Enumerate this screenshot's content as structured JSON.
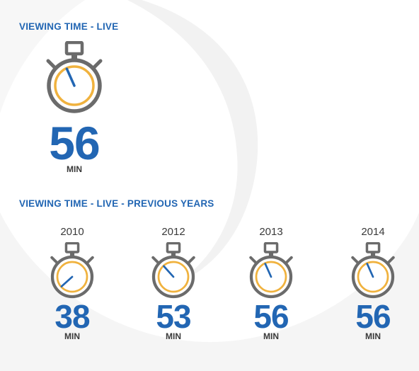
{
  "colors": {
    "accent_blue": "#2266b3",
    "dial_orange": "#f0b23e",
    "watch_gray": "#6b6b6b",
    "background_swirl": "#f3f3f3"
  },
  "live": {
    "title": "VIEWING TIME - LIVE",
    "value": "56",
    "unit": "MIN",
    "minutes": 56
  },
  "previous": {
    "title": "VIEWING TIME - LIVE - PREVIOUS YEARS",
    "years": [
      {
        "year": "2010",
        "value": "38",
        "unit": "MIN",
        "minutes": 38
      },
      {
        "year": "2012",
        "value": "53",
        "unit": "MIN",
        "minutes": 53
      },
      {
        "year": "2013",
        "value": "56",
        "unit": "MIN",
        "minutes": 56
      },
      {
        "year": "2014",
        "value": "56",
        "unit": "MIN",
        "minutes": 56
      }
    ]
  }
}
